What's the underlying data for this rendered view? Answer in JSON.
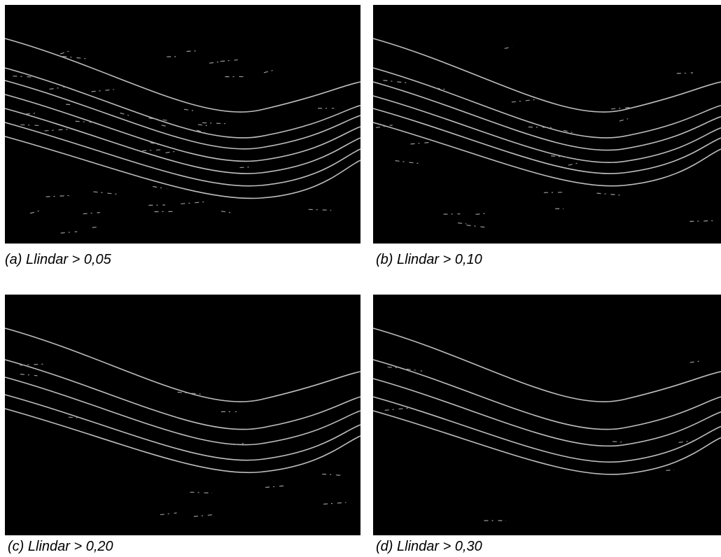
{
  "figure": {
    "panels": [
      {
        "caption": "(a) Llindar > 0,05"
      },
      {
        "caption": "(b) Llindar > 0,10"
      },
      {
        "caption": "(c) Llindar > 0,20"
      },
      {
        "caption": "(d) Llindar > 0,30"
      }
    ]
  }
}
